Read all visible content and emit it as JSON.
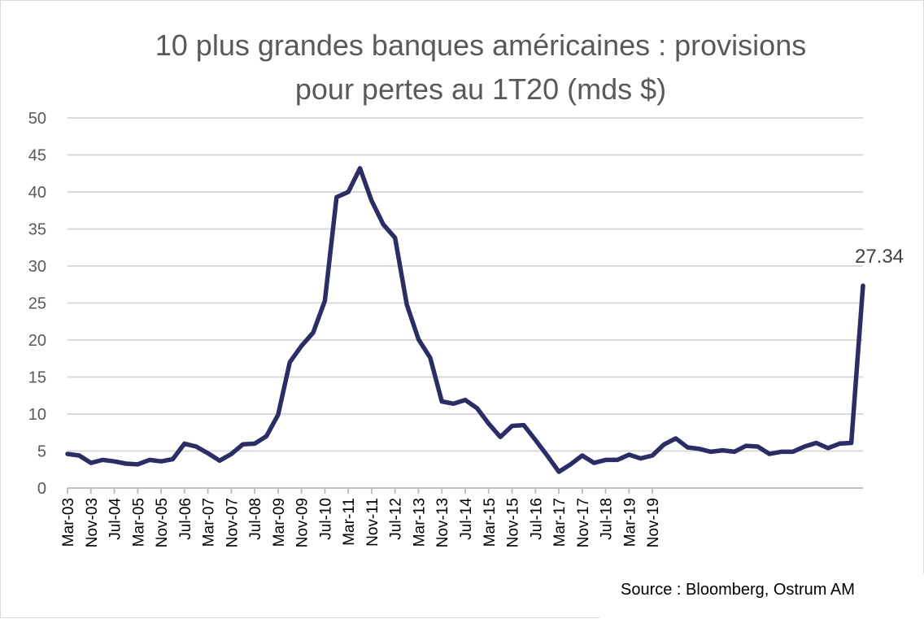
{
  "chart_data": {
    "type": "line",
    "title": "10 plus grandes banques américaines : provisions pour pertes au 1T20 (mds $)",
    "title_lines": [
      "10 plus grandes banques américaines : provisions",
      "pour pertes au 1T20 (mds $)"
    ],
    "ylim": [
      0,
      50
    ],
    "yticks": [
      0,
      5,
      10,
      15,
      20,
      25,
      30,
      35,
      40,
      45,
      50
    ],
    "grid": true,
    "tick_labels": [
      "Mar-03",
      "Nov-03",
      "Jul-04",
      "Mar-05",
      "Nov-05",
      "Jul-06",
      "Mar-07",
      "Nov-07",
      "Jul-08",
      "Mar-09",
      "Nov-09",
      "Jul-10",
      "Mar-11",
      "Nov-11",
      "Jul-12",
      "Mar-13",
      "Nov-13",
      "Jul-14",
      "Mar-15",
      "Nov-15",
      "Jul-16",
      "Mar-17",
      "Nov-17",
      "Jul-18",
      "Mar-19",
      "Nov-19"
    ],
    "tick_label_indices": [
      0,
      2,
      4,
      6,
      8,
      10,
      12,
      14,
      16,
      18,
      20,
      22,
      24,
      26,
      28,
      30,
      32,
      34,
      36,
      38,
      40,
      42,
      44,
      46,
      48,
      50
    ],
    "series": [
      {
        "color": "#2b2d64",
        "values": [
          4.6,
          4.4,
          3.4,
          3.8,
          3.6,
          3.3,
          3.2,
          3.8,
          3.6,
          3.9,
          6.0,
          5.6,
          4.7,
          3.7,
          4.6,
          5.9,
          6.0,
          7.0,
          9.9,
          17.0,
          19.2,
          21.0,
          25.3,
          39.3,
          40.0,
          43.2,
          38.8,
          35.6,
          33.8,
          24.8,
          20.1,
          17.6,
          11.7,
          11.4,
          11.9,
          10.8,
          8.7,
          6.9,
          8.4,
          8.5,
          6.5,
          4.4,
          2.2,
          3.2,
          4.4,
          3.4,
          3.8,
          3.8,
          4.5,
          4.0,
          4.4,
          5.9,
          6.7,
          5.5,
          5.3,
          4.9,
          5.1,
          4.9,
          5.7,
          5.6,
          4.6,
          4.9,
          4.9,
          5.6,
          6.1,
          5.4,
          6.0,
          6.1,
          27.34
        ]
      }
    ],
    "data_labels": [
      {
        "index": 68,
        "text": "27.34"
      }
    ]
  },
  "source": "Source : Bloomberg, Ostrum AM"
}
